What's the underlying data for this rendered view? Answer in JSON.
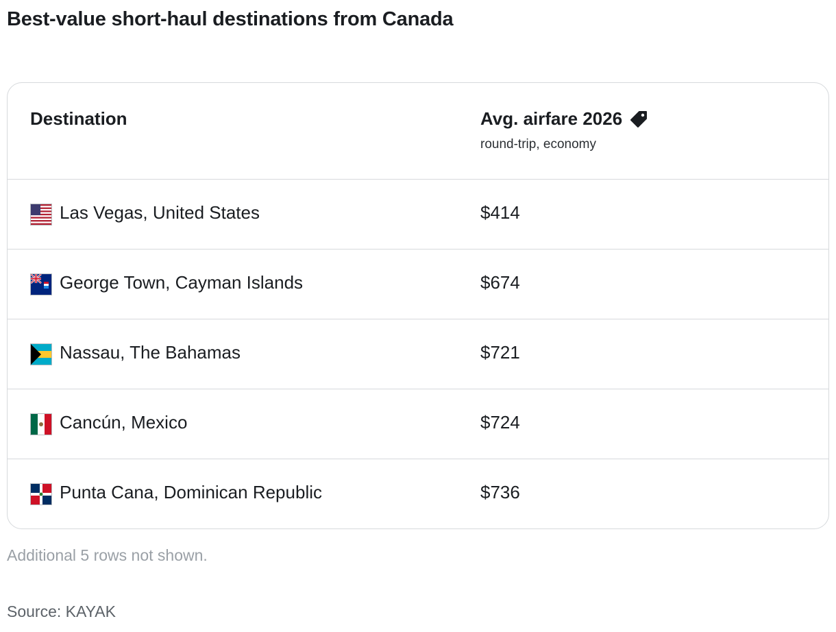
{
  "title": "Best-value short-haul destinations from Canada",
  "table": {
    "header": {
      "destination": "Destination",
      "airfare": "Avg. airfare 2026",
      "airfare_sub": "round-trip, economy",
      "tag_icon": "price-tag-icon"
    },
    "rows": [
      {
        "flag": "us-flag-icon",
        "destination": "Las Vegas, United States",
        "price": "$414"
      },
      {
        "flag": "cayman-islands-flag-icon",
        "destination": "George Town, Cayman Islands",
        "price": "$674"
      },
      {
        "flag": "bahamas-flag-icon",
        "destination": "Nassau, The Bahamas",
        "price": "$721"
      },
      {
        "flag": "mexico-flag-icon",
        "destination": "Cancún, Mexico",
        "price": "$724"
      },
      {
        "flag": "dominican-republic-flag-icon",
        "destination": "Punta Cana, Dominican Republic",
        "price": "$736"
      }
    ]
  },
  "note": "Additional 5 rows not shown.",
  "source": "Source: KAYAK"
}
